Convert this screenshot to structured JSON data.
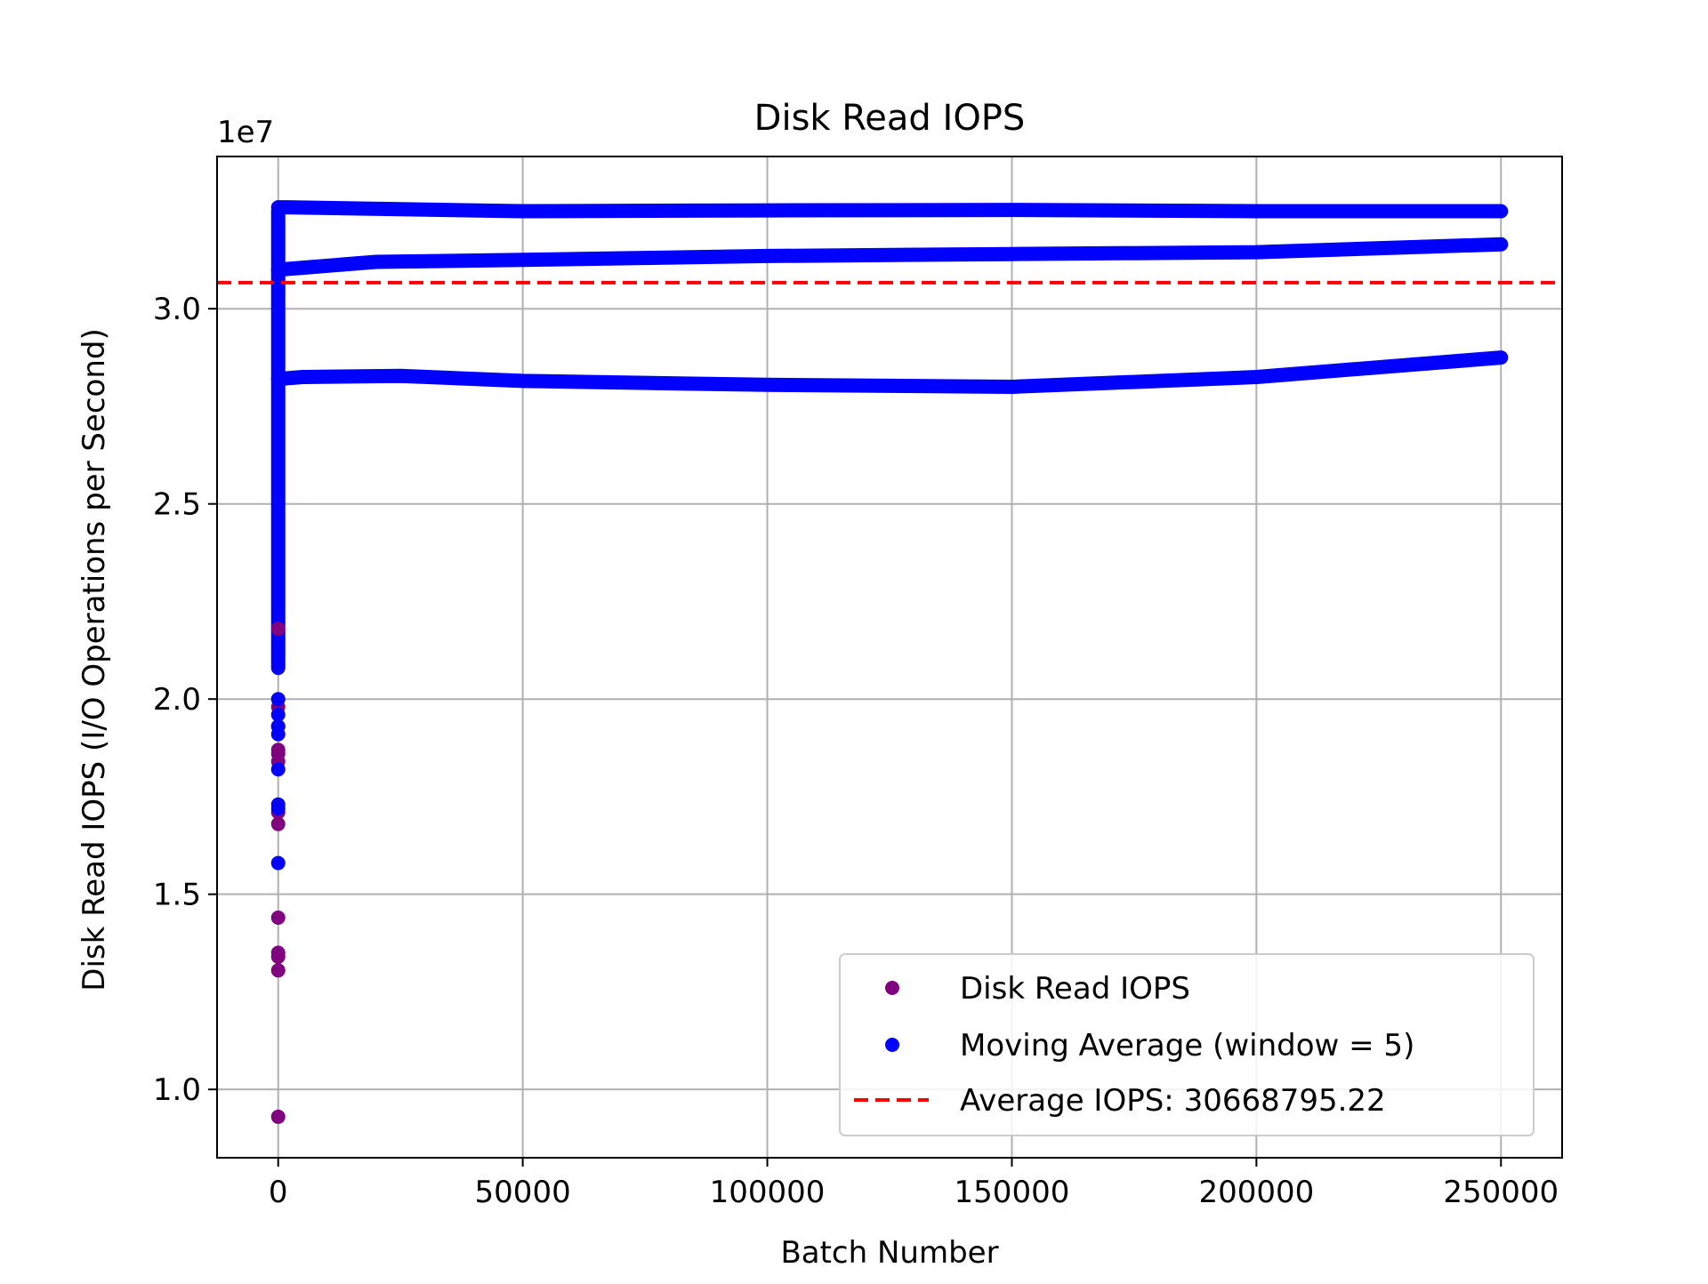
{
  "chart_data": {
    "type": "scatter",
    "title": "Disk Read IOPS",
    "xlabel": "Batch Number",
    "ylabel": "Disk Read IOPS (I/O Operations per Second)",
    "y_offset_label": "1e7",
    "y_scale": 10000000,
    "xlim": [
      -12500,
      262500
    ],
    "ylim": [
      8250000,
      33900000
    ],
    "x_ticks": [
      0,
      50000,
      100000,
      150000,
      200000,
      250000
    ],
    "x_tick_labels": [
      "0",
      "50000",
      "100000",
      "150000",
      "200000",
      "250000"
    ],
    "y_ticks": [
      10000000,
      15000000,
      20000000,
      25000000,
      30000000
    ],
    "y_tick_labels": [
      "1.0",
      "1.5",
      "2.0",
      "2.5",
      "3.0"
    ],
    "grid": true,
    "legend_position": "lower-right",
    "series": [
      {
        "name": "Disk Read IOPS",
        "kind": "scatter",
        "color": "#800080",
        "points": [
          [
            0,
            9300000
          ],
          [
            0,
            13050000
          ],
          [
            0,
            13400000
          ],
          [
            0,
            13500000
          ],
          [
            0,
            14400000
          ],
          [
            0,
            16800000
          ],
          [
            0,
            17100000
          ],
          [
            0,
            18400000
          ],
          [
            0,
            18600000
          ],
          [
            0,
            18700000
          ],
          [
            0,
            19300000
          ],
          [
            0,
            19800000
          ],
          [
            0,
            21800000
          ]
        ]
      },
      {
        "name": "Moving Average (window = 5)",
        "kind": "scatter-dense",
        "color": "#0000ff",
        "start_cluster": [
          [
            0,
            15800000
          ],
          [
            0,
            17200000
          ],
          [
            0,
            17300000
          ],
          [
            0,
            18200000
          ],
          [
            0,
            19100000
          ],
          [
            0,
            19300000
          ],
          [
            0,
            19600000
          ],
          [
            0,
            20000000
          ]
        ],
        "vertical_band": [
          0,
          20800000,
          32500000
        ],
        "bands": [
          [
            [
              0,
              32600000
            ],
            [
              2000,
              32600000
            ],
            [
              25000,
              32550000
            ],
            [
              50000,
              32500000
            ],
            [
              100000,
              32520000
            ],
            [
              150000,
              32530000
            ],
            [
              200000,
              32500000
            ],
            [
              250000,
              32500000
            ]
          ],
          [
            [
              0,
              31000000
            ],
            [
              5000,
              31050000
            ],
            [
              20000,
              31200000
            ],
            [
              50000,
              31250000
            ],
            [
              100000,
              31350000
            ],
            [
              150000,
              31400000
            ],
            [
              200000,
              31450000
            ],
            [
              250000,
              31650000
            ]
          ],
          [
            [
              0,
              28200000
            ],
            [
              5000,
              28250000
            ],
            [
              25000,
              28280000
            ],
            [
              50000,
              28150000
            ],
            [
              100000,
              28050000
            ],
            [
              150000,
              28000000
            ],
            [
              200000,
              28250000
            ],
            [
              250000,
              28750000
            ]
          ]
        ]
      },
      {
        "name": "Average IOPS: 30668795.22",
        "kind": "hline",
        "color": "#ff0000",
        "value": 30668795.22
      }
    ]
  }
}
